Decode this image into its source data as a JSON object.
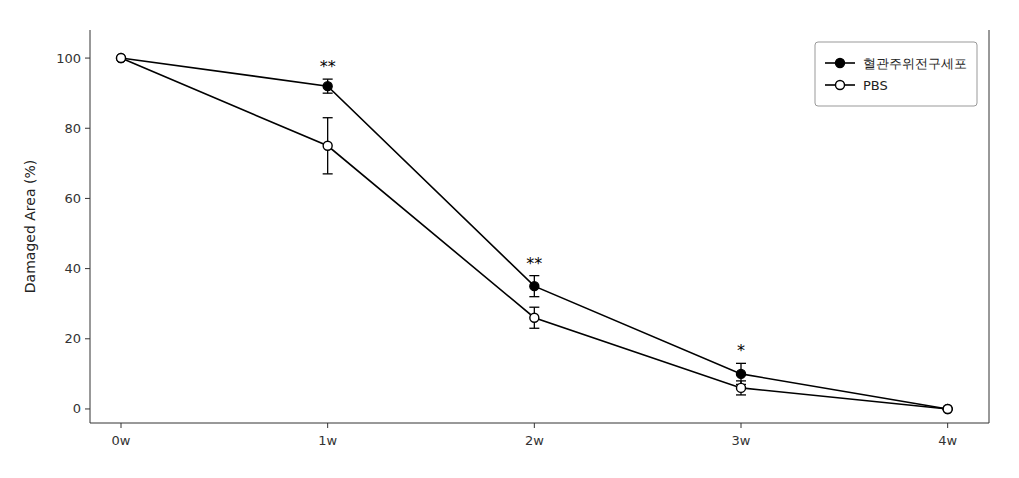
{
  "chart_data": {
    "type": "line",
    "x": [
      0,
      1,
      2,
      3,
      4
    ],
    "xlim": [
      -0.15,
      4.2
    ],
    "xticks": [
      {
        "value": 0,
        "label": "0w"
      },
      {
        "value": 1,
        "label": "1w"
      },
      {
        "value": 2,
        "label": "2w"
      },
      {
        "value": 3,
        "label": "3w"
      },
      {
        "value": 4,
        "label": "4w"
      }
    ],
    "ylabel": "Damaged Area (%)",
    "ylim": [
      -4,
      108
    ],
    "yticks": [
      0,
      20,
      40,
      60,
      80,
      100
    ],
    "series": [
      {
        "name": "혈관주위전구세포",
        "color": "#000000",
        "marker": "circle",
        "line_style": "solid",
        "values": [
          100,
          92,
          35,
          10,
          0
        ],
        "errors": [
          0,
          2,
          3,
          3,
          0
        ]
      },
      {
        "name": "PBS",
        "color": "#000000",
        "marker": "open-circle",
        "line_style": "solid",
        "values": [
          100,
          75,
          26,
          6,
          0
        ],
        "errors": [
          0,
          8,
          3,
          2,
          0
        ]
      }
    ],
    "annotations": [
      {
        "x": 1,
        "y": 96,
        "text": "**"
      },
      {
        "x": 2,
        "y": 40,
        "text": "**"
      },
      {
        "x": 3,
        "y": 15,
        "text": "*"
      }
    ],
    "legend": "upper right",
    "grid": false
  }
}
